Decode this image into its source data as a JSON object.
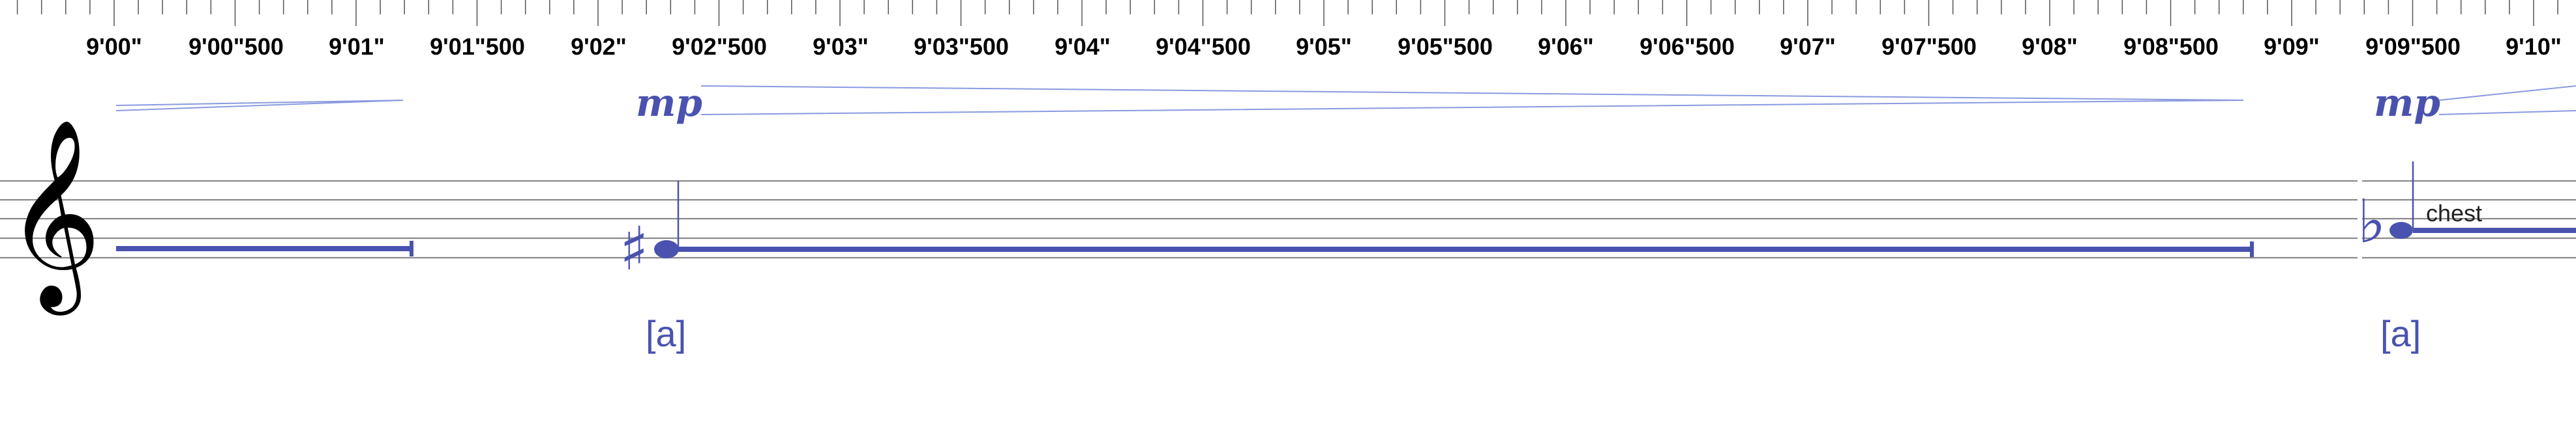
{
  "ruler": {
    "labels": [
      "9'00\"",
      "9'00\"500",
      "9'01\"",
      "9'01\"500",
      "9'02\"",
      "9'02\"500",
      "9'03\"",
      "9'03\"500",
      "9'04\"",
      "9'04\"500",
      "9'05\"",
      "9'05\"500",
      "9'06\"",
      "9'06\"500",
      "9'07\"",
      "9'07\"500",
      "9'08\"",
      "9'08\"500",
      "9'09\"",
      "9'09\"500",
      "9'10\""
    ]
  },
  "staff": {
    "clef": "𝄞",
    "notes": [
      {
        "dynamic": "mp",
        "accidental": "♯",
        "lyric": "[a]"
      },
      {
        "dynamic": "mp",
        "accidental": "♭",
        "lyric": "[a]",
        "technique": "chest"
      }
    ]
  },
  "colors": {
    "ink": "#4a52b0",
    "staff": "#8a8a8a",
    "text": "#000000"
  }
}
